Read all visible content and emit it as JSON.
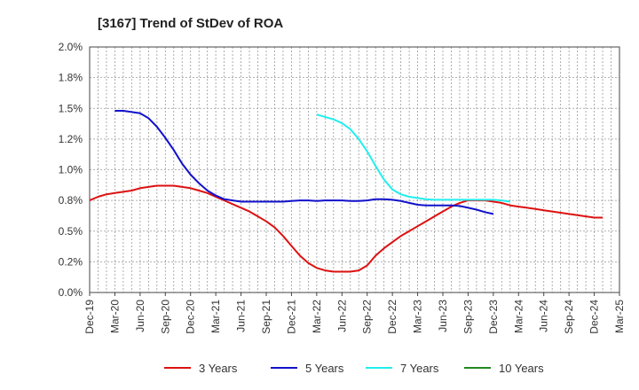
{
  "chart_data": {
    "type": "line",
    "title": "[3167]  Trend of StDev of ROA",
    "xlabel": "",
    "ylabel": "",
    "x_ticks": [
      "Dec-19",
      "Mar-20",
      "Jun-20",
      "Sep-20",
      "Dec-20",
      "Mar-21",
      "Jun-21",
      "Sep-21",
      "Dec-21",
      "Mar-22",
      "Jun-22",
      "Sep-22",
      "Dec-22",
      "Mar-23",
      "Jun-23",
      "Sep-23",
      "Dec-23",
      "Mar-24",
      "Jun-24",
      "Sep-24",
      "Dec-24",
      "Mar-25"
    ],
    "y_ticks": [
      "0.0%",
      "0.2%",
      "0.5%",
      "0.8%",
      "1.0%",
      "1.2%",
      "1.5%",
      "1.8%",
      "2.0%"
    ],
    "ylim": [
      0,
      2.0
    ],
    "grid": true,
    "legend_position": "bottom",
    "series": [
      {
        "name": "3 Years",
        "color": "#dd1111",
        "start_index": 0,
        "values": [
          0.75,
          0.78,
          0.8,
          0.81,
          0.82,
          0.83,
          0.85,
          0.86,
          0.87,
          0.87,
          0.87,
          0.86,
          0.85,
          0.83,
          0.81,
          0.78,
          0.75,
          0.72,
          0.69,
          0.66,
          0.62,
          0.58,
          0.53,
          0.46,
          0.38,
          0.3,
          0.24,
          0.2,
          0.18,
          0.17,
          0.17,
          0.17,
          0.18,
          0.22,
          0.3,
          0.36,
          0.41,
          0.46,
          0.5,
          0.54,
          0.58,
          0.62,
          0.66,
          0.7,
          0.73,
          0.75,
          0.75,
          0.75,
          0.74,
          0.73,
          0.71,
          0.7,
          0.69,
          0.68,
          0.67,
          0.66,
          0.65,
          0.64,
          0.63,
          0.62,
          0.61,
          0.61
        ]
      },
      {
        "name": "5 Years",
        "color": "#1111cc",
        "start_index": 3,
        "values": [
          1.48,
          1.48,
          1.47,
          1.46,
          1.42,
          1.35,
          1.26,
          1.16,
          1.05,
          0.96,
          0.89,
          0.83,
          0.79,
          0.76,
          0.75,
          0.74,
          0.74,
          0.74,
          0.74,
          0.74,
          0.74,
          0.745,
          0.75,
          0.75,
          0.745,
          0.75,
          0.75,
          0.75,
          0.745,
          0.745,
          0.75,
          0.76,
          0.76,
          0.755,
          0.745,
          0.73,
          0.715,
          0.71,
          0.71,
          0.71,
          0.71,
          0.705,
          0.69,
          0.675,
          0.655,
          0.64
        ]
      },
      {
        "name": "7 Years",
        "color": "#22eeee",
        "start_index": 27,
        "values": [
          1.45,
          1.43,
          1.41,
          1.38,
          1.33,
          1.25,
          1.15,
          1.03,
          0.92,
          0.84,
          0.8,
          0.78,
          0.77,
          0.76,
          0.755,
          0.755,
          0.755,
          0.755,
          0.755,
          0.755,
          0.755,
          0.755,
          0.75,
          0.74
        ]
      },
      {
        "name": "10 Years",
        "color": "#228822",
        "start_index": 0,
        "values": []
      }
    ]
  }
}
